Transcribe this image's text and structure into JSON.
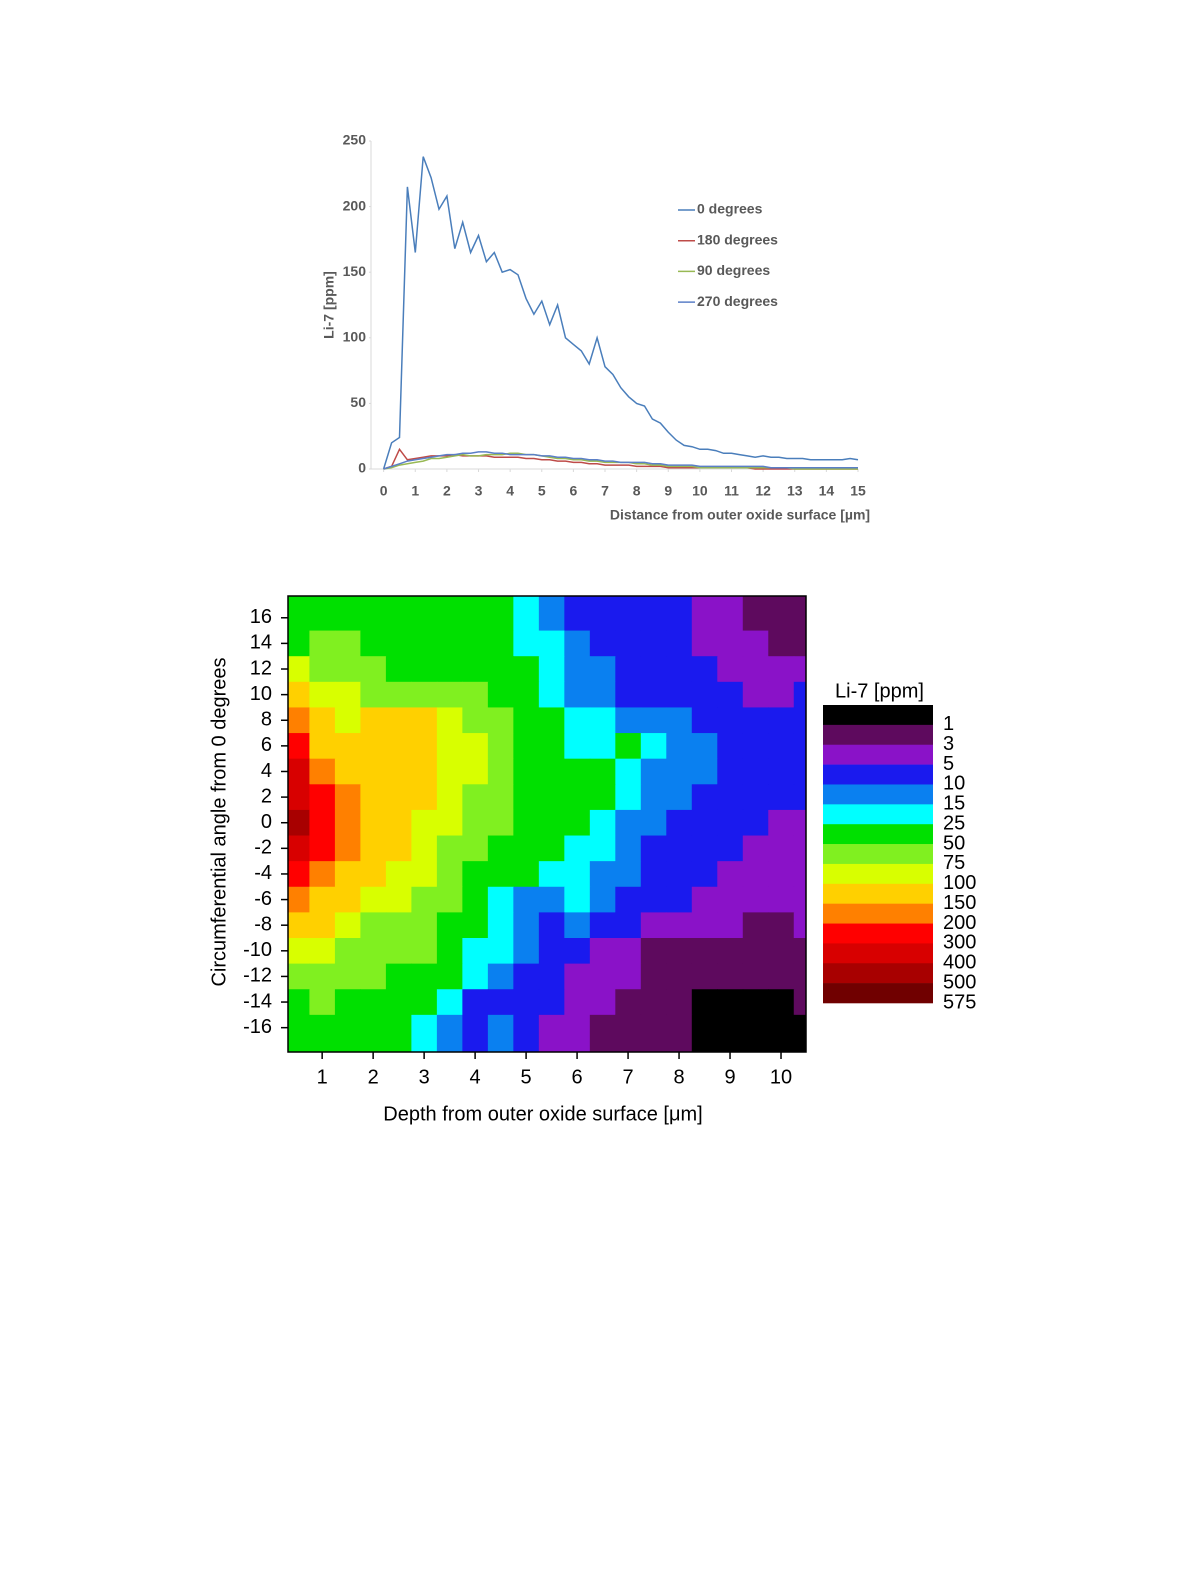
{
  "chart_data": [
    {
      "type": "line",
      "xlabel": "Distance from outer oxide surface [µm]",
      "ylabel": "Li-7 [ppm]",
      "x": [
        0,
        0.25,
        0.5,
        0.75,
        1,
        1.25,
        1.5,
        1.75,
        2,
        2.25,
        2.5,
        2.75,
        3,
        3.25,
        3.5,
        3.75,
        4,
        4.25,
        4.5,
        4.75,
        5,
        5.25,
        5.5,
        5.75,
        6,
        6.25,
        6.5,
        6.75,
        7,
        7.25,
        7.5,
        7.75,
        8,
        8.25,
        8.5,
        8.75,
        9,
        9.25,
        9.5,
        9.75,
        10,
        10.25,
        10.5,
        10.75,
        11,
        11.25,
        11.5,
        11.75,
        12,
        12.25,
        12.5,
        12.75,
        13,
        13.25,
        13.5,
        13.75,
        14,
        14.25,
        14.5,
        14.75,
        15
      ],
      "xlim": [
        -0.4,
        15
      ],
      "xticks": [
        0,
        1,
        2,
        3,
        4,
        5,
        6,
        7,
        8,
        9,
        10,
        11,
        12,
        13,
        14,
        15
      ],
      "ylim": [
        0,
        250
      ],
      "yticks": [
        0,
        50,
        100,
        150,
        200,
        250
      ],
      "legend": "upper right",
      "series": [
        {
          "name": "0 degrees",
          "color": "#4a7ebb",
          "values": [
            0,
            20,
            24,
            215,
            165,
            238,
            222,
            198,
            208,
            168,
            188,
            165,
            178,
            158,
            165,
            150,
            152,
            148,
            130,
            118,
            128,
            110,
            125,
            100,
            95,
            90,
            80,
            100,
            78,
            72,
            62,
            55,
            50,
            48,
            38,
            35,
            28,
            22,
            18,
            17,
            15,
            15,
            14,
            12,
            12,
            11,
            10,
            9,
            10,
            9,
            9,
            8,
            8,
            8,
            7,
            7,
            7,
            7,
            7,
            8,
            7
          ]
        },
        {
          "name": "180 degrees",
          "color": "#be4b48",
          "values": [
            0,
            2,
            15,
            7,
            8,
            9,
            10,
            10,
            10,
            11,
            10,
            10,
            10,
            10,
            9,
            9,
            9,
            9,
            8,
            8,
            7,
            7,
            6,
            6,
            5,
            5,
            4,
            4,
            3,
            3,
            3,
            3,
            2,
            2,
            2,
            2,
            1,
            1,
            1,
            1,
            1,
            1,
            1,
            1,
            1,
            1,
            1,
            0,
            0,
            0,
            0,
            0,
            0,
            0,
            0,
            0,
            0,
            0,
            0,
            0,
            0
          ]
        },
        {
          "name": "90 degrees",
          "color": "#98b954",
          "values": [
            0,
            1,
            3,
            4,
            5,
            6,
            8,
            8,
            9,
            10,
            11,
            10,
            10,
            11,
            11,
            11,
            12,
            12,
            11,
            11,
            10,
            9,
            8,
            8,
            7,
            7,
            6,
            6,
            5,
            5,
            5,
            5,
            4,
            4,
            3,
            3,
            2,
            2,
            2,
            2,
            1,
            1,
            1,
            1,
            1,
            1,
            1,
            1,
            1,
            1,
            1,
            1,
            0,
            0,
            0,
            0,
            0,
            0,
            0,
            0,
            0
          ]
        },
        {
          "name": "270 degrees",
          "color": "#5b7fc7",
          "values": [
            0,
            2,
            4,
            6,
            7,
            8,
            9,
            10,
            11,
            11,
            12,
            12,
            13,
            13,
            12,
            12,
            11,
            11,
            11,
            11,
            10,
            10,
            9,
            9,
            8,
            8,
            7,
            7,
            6,
            6,
            5,
            5,
            5,
            5,
            4,
            4,
            3,
            3,
            3,
            3,
            2,
            2,
            2,
            2,
            2,
            2,
            2,
            2,
            2,
            1,
            1,
            1,
            1,
            1,
            1,
            1,
            1,
            1,
            1,
            1,
            1
          ]
        }
      ]
    },
    {
      "type": "contour",
      "xlabel": "Depth from outer oxide surface [μm]",
      "ylabel": "Circumferential angle from 0 degrees",
      "x": [
        0.5,
        1,
        1.5,
        2,
        2.5,
        3,
        3.5,
        4,
        4.5,
        5,
        5.5,
        6,
        6.5,
        7,
        7.5,
        8,
        8.5,
        9,
        9.5,
        10,
        10.5
      ],
      "y": [
        16,
        14,
        12,
        10,
        8,
        6,
        4,
        2,
        0,
        -2,
        -4,
        -6,
        -8,
        -10,
        -12,
        -14,
        -16
      ],
      "z": [
        [
          30,
          40,
          40,
          35,
          30,
          30,
          28,
          27,
          26,
          20,
          14,
          8,
          7,
          6,
          6,
          5,
          4,
          3,
          2.5,
          2,
          2
        ],
        [
          45,
          55,
          50,
          45,
          40,
          38,
          35,
          30,
          28,
          22,
          16,
          12,
          9,
          9,
          7,
          6,
          4,
          4,
          3,
          2.5,
          2
        ],
        [
          80,
          70,
          60,
          52,
          48,
          45,
          40,
          35,
          30,
          26,
          18,
          13,
          10,
          8,
          7,
          6,
          5,
          4,
          3.5,
          3,
          3
        ],
        [
          120,
          90,
          80,
          60,
          55,
          70,
          60,
          50,
          40,
          30,
          20,
          14,
          11,
          9,
          8,
          7,
          6,
          5,
          4,
          4,
          5.5
        ],
        [
          160,
          110,
          90,
          105,
          100,
          100,
          90,
          70,
          60,
          40,
          26,
          18,
          16,
          12,
          12,
          10,
          8,
          7,
          6,
          5.5,
          5.5
        ],
        [
          250,
          140,
          110,
          105,
          110,
          105,
          95,
          80,
          65,
          45,
          30,
          22,
          18,
          25,
          15,
          12,
          10,
          9,
          7,
          7,
          6
        ],
        [
          320,
          180,
          130,
          110,
          105,
          100,
          90,
          75,
          60,
          45,
          35,
          28,
          26,
          18,
          14,
          12,
          10,
          9,
          8,
          7,
          6
        ],
        [
          350,
          220,
          160,
          110,
          105,
          100,
          85,
          72,
          55,
          45,
          35,
          30,
          26,
          16,
          12,
          10,
          9,
          8,
          7,
          7,
          6
        ],
        [
          400,
          230,
          160,
          120,
          105,
          95,
          80,
          65,
          50,
          42,
          35,
          30,
          24,
          14,
          10,
          8,
          7,
          6,
          5,
          4.5,
          4
        ],
        [
          350,
          210,
          150,
          110,
          100,
          80,
          70,
          55,
          45,
          38,
          30,
          20,
          16,
          12,
          9,
          7,
          6,
          5,
          4.5,
          4,
          4
        ],
        [
          220,
          150,
          110,
          100,
          95,
          78,
          60,
          45,
          35,
          28,
          22,
          16,
          12,
          10,
          8,
          6,
          5,
          4.5,
          4,
          4,
          3.5
        ],
        [
          150,
          110,
          100,
          95,
          80,
          70,
          55,
          40,
          22,
          14,
          12,
          15,
          11,
          9,
          6,
          5,
          4,
          3.5,
          3.5,
          3,
          3
        ],
        [
          110,
          100,
          80,
          70,
          60,
          55,
          45,
          28,
          18,
          12,
          9,
          10,
          8,
          6,
          4.5,
          4,
          3.5,
          3,
          2.5,
          2.5,
          3
        ],
        [
          90,
          80,
          70,
          60,
          55,
          50,
          40,
          24,
          16,
          11,
          8,
          6,
          4.5,
          4,
          2.5,
          2.5,
          2.5,
          2,
          2,
          2,
          2
        ],
        [
          70,
          60,
          55,
          50,
          45,
          40,
          30,
          22,
          12,
          8,
          6,
          4,
          3.5,
          3,
          2,
          2,
          2,
          1.5,
          1.5,
          1.5,
          2
        ],
        [
          40,
          50,
          40,
          35,
          30,
          28,
          20,
          8,
          7,
          8,
          6,
          3.5,
          3,
          2.5,
          2,
          1.5,
          0.8,
          0.8,
          0.9,
          0.8,
          1.5
        ],
        [
          30,
          35,
          30,
          28,
          26,
          20,
          14,
          9,
          12,
          6,
          3.5,
          3,
          2.5,
          2,
          2,
          1.5,
          0.7,
          0.6,
          0.7,
          0.8,
          0.9
        ]
      ],
      "xlim": [
        0.33,
        10.49
      ],
      "xticks": [
        1,
        2,
        3,
        4,
        5,
        6,
        7,
        8,
        9,
        10
      ],
      "ylim": [
        -17.9,
        17.7
      ],
      "yticks": [
        -16,
        -14,
        -12,
        -10,
        -8,
        -6,
        -4,
        -2,
        0,
        2,
        4,
        6,
        8,
        10,
        12,
        14,
        16
      ],
      "colorbar_title": "Li-7 [ppm]",
      "levels": [
        1,
        3,
        5,
        10,
        15,
        25,
        50,
        75,
        100,
        150,
        200,
        300,
        400,
        500,
        575
      ],
      "colors": [
        "#000000",
        "#5e0a5e",
        "#8a12c8",
        "#1a1aee",
        "#0a80f0",
        "#00ffff",
        "#00e000",
        "#80f020",
        "#d8ff00",
        "#ffd000",
        "#ff8000",
        "#ff0000",
        "#d80000",
        "#a80000",
        "#700000"
      ]
    }
  ]
}
